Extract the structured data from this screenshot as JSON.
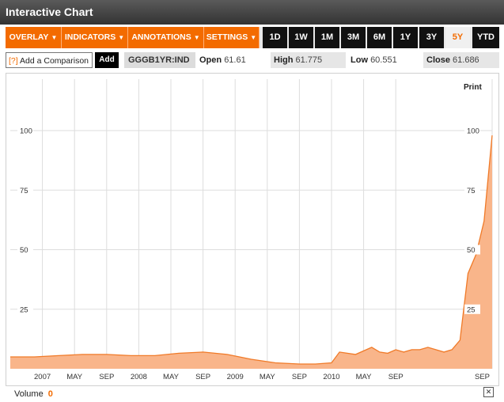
{
  "window": {
    "title": "Interactive Chart"
  },
  "toolbar": {
    "menus": [
      {
        "label": "OVERLAY"
      },
      {
        "label": "INDICATORS"
      },
      {
        "label": "ANNOTATIONS"
      },
      {
        "label": "SETTINGS"
      }
    ],
    "ranges": [
      "1D",
      "1W",
      "1M",
      "3M",
      "6M",
      "1Y",
      "3Y",
      "5Y",
      "YTD"
    ],
    "active_range": "5Y",
    "caret": "▼"
  },
  "info": {
    "help": "[?]",
    "compare_label": "Add a Comparison",
    "add_label": "Add",
    "symbol": "GGGB1YR:IND",
    "open_label": "Open",
    "open_value": "61.61",
    "high_label": "High",
    "high_value": "61.775",
    "low_label": "Low",
    "low_value": "60.551",
    "close_label": "Close",
    "close_value": "61.686"
  },
  "print_label": "Print",
  "volume": {
    "label": "Volume",
    "value": "0"
  },
  "close_icon": "✕",
  "colors": {
    "accent": "#f36b00",
    "area_fill": "#f9b58a",
    "line": "#f07a28"
  },
  "chart_data": {
    "type": "area",
    "y_ticks": [
      "100",
      "75",
      "50",
      "25"
    ],
    "y_tick_values": [
      100,
      75,
      50,
      25
    ],
    "x_labels": [
      "2007",
      "MAY",
      "SEP",
      "2008",
      "MAY",
      "SEP",
      "2009",
      "MAY",
      "SEP",
      "2010",
      "MAY",
      "SEP",
      "SEP"
    ],
    "ylim": [
      0,
      105
    ],
    "grid": true,
    "x": [
      "2006-09",
      "2006-12",
      "2007-03",
      "2007-06",
      "2007-09",
      "2007-12",
      "2008-03",
      "2008-06",
      "2008-09",
      "2008-12",
      "2009-03",
      "2009-06",
      "2009-09",
      "2009-11",
      "2010-01",
      "2010-02",
      "2010-04",
      "2010-05",
      "2010-06",
      "2010-07",
      "2010-08",
      "2010-09",
      "2010-10",
      "2010-11",
      "2010-12",
      "2011-01",
      "2011-02",
      "2011-03",
      "2011-04",
      "2011-05",
      "2011-06",
      "2011-07",
      "2011-08",
      "2011-09"
    ],
    "values": [
      5,
      5,
      5.5,
      6,
      6,
      5.5,
      5.5,
      6.5,
      7,
      6,
      4,
      2.5,
      2,
      2,
      2.5,
      7,
      6,
      7.5,
      9,
      7,
      6.5,
      8,
      7,
      8,
      8,
      9,
      8,
      7,
      8,
      12,
      40,
      48,
      62,
      98
    ]
  }
}
